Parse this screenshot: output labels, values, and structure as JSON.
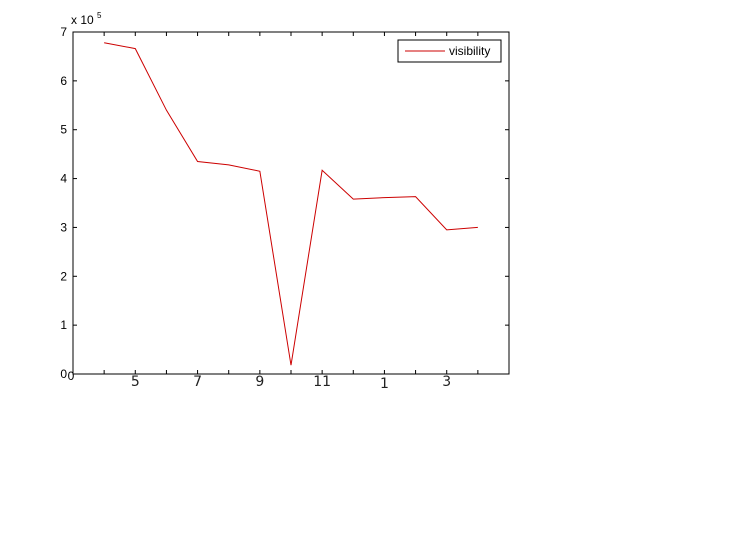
{
  "chart_data": {
    "type": "line",
    "title": "",
    "xlabel": "",
    "ylabel": "",
    "x_tick_labels": [
      "0",
      "5",
      "7",
      "9",
      "11",
      "1",
      "3"
    ],
    "y_ticks": [
      0,
      1,
      2,
      3,
      4,
      5,
      6,
      7
    ],
    "y_tick_labels": [
      "0",
      "1",
      "2",
      "3",
      "4",
      "5",
      "6",
      "7"
    ],
    "y_exponent_label": "x 10",
    "y_exponent_power": "5",
    "ylim": [
      0,
      700000
    ],
    "grid": false,
    "legend_position": "top-right",
    "line_color": "#cc0000",
    "series": [
      {
        "name": "visibility",
        "values": [
          678000,
          666000,
          540000,
          435000,
          428000,
          415000,
          18000,
          417000,
          358000,
          361000,
          363000,
          295000,
          300000
        ]
      }
    ]
  }
}
